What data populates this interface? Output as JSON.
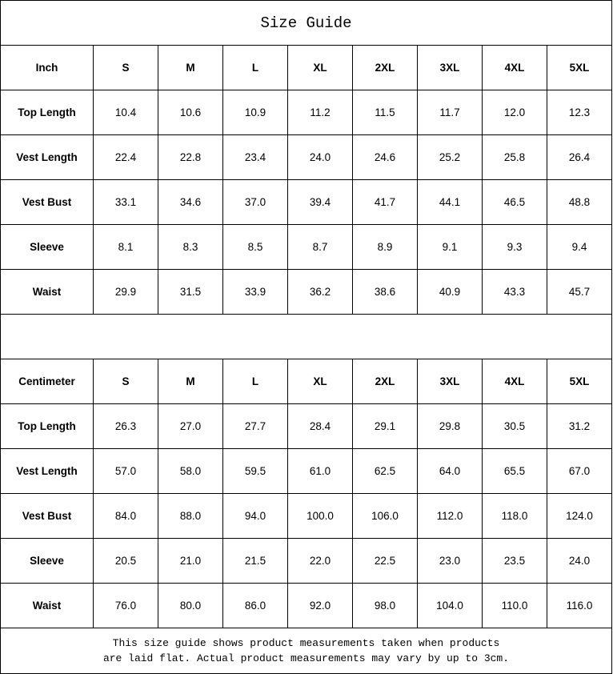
{
  "title": "Size Guide",
  "sizes": [
    "S",
    "M",
    "L",
    "XL",
    "2XL",
    "3XL",
    "4XL",
    "5XL"
  ],
  "tables": [
    {
      "unit": "Inch",
      "rows": [
        {
          "label": "Top Length",
          "values": [
            "10.4",
            "10.6",
            "10.9",
            "11.2",
            "11.5",
            "11.7",
            "12.0",
            "12.3"
          ]
        },
        {
          "label": "Vest Length",
          "values": [
            "22.4",
            "22.8",
            "23.4",
            "24.0",
            "24.6",
            "25.2",
            "25.8",
            "26.4"
          ]
        },
        {
          "label": "Vest Bust",
          "values": [
            "33.1",
            "34.6",
            "37.0",
            "39.4",
            "41.7",
            "44.1",
            "46.5",
            "48.8"
          ]
        },
        {
          "label": "Sleeve",
          "values": [
            "8.1",
            "8.3",
            "8.5",
            "8.7",
            "8.9",
            "9.1",
            "9.3",
            "9.4"
          ]
        },
        {
          "label": "Waist",
          "values": [
            "29.9",
            "31.5",
            "33.9",
            "36.2",
            "38.6",
            "40.9",
            "43.3",
            "45.7"
          ]
        }
      ]
    },
    {
      "unit": "Centimeter",
      "rows": [
        {
          "label": "Top Length",
          "values": [
            "26.3",
            "27.0",
            "27.7",
            "28.4",
            "29.1",
            "29.8",
            "30.5",
            "31.2"
          ]
        },
        {
          "label": "Vest Length",
          "values": [
            "57.0",
            "58.0",
            "59.5",
            "61.0",
            "62.5",
            "64.0",
            "65.5",
            "67.0"
          ]
        },
        {
          "label": "Vest Bust",
          "values": [
            "84.0",
            "88.0",
            "94.0",
            "100.0",
            "106.0",
            "112.0",
            "118.0",
            "124.0"
          ]
        },
        {
          "label": "Sleeve",
          "values": [
            "20.5",
            "21.0",
            "21.5",
            "22.0",
            "22.5",
            "23.0",
            "23.5",
            "24.0"
          ]
        },
        {
          "label": "Waist",
          "values": [
            "76.0",
            "80.0",
            "86.0",
            "92.0",
            "98.0",
            "104.0",
            "110.0",
            "116.0"
          ]
        }
      ]
    }
  ],
  "note": {
    "line1": "This size guide shows product measurements taken when products",
    "line2": "are laid flat. Actual product measurements may vary by up to 3cm."
  }
}
